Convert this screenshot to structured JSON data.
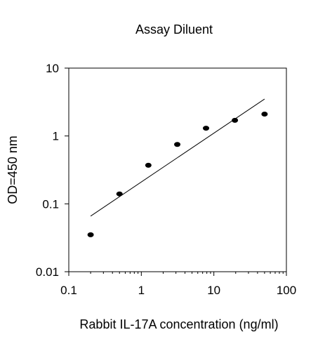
{
  "chart_data": {
    "type": "scatter",
    "title": "Assay Diluent",
    "xlabel": "Rabbit IL-17A concentration (ng/ml)",
    "ylabel": "OD=450 nm",
    "x_scale": "log",
    "y_scale": "log",
    "xlim": [
      0.1,
      100
    ],
    "ylim": [
      0.01,
      10
    ],
    "x_ticks": [
      "0.1",
      "1",
      "10",
      "100"
    ],
    "y_ticks": [
      "0.01",
      "0.1",
      "1",
      "10"
    ],
    "grid": false,
    "points": [
      {
        "x": 0.2,
        "y": 0.035
      },
      {
        "x": 0.5,
        "y": 0.14
      },
      {
        "x": 1.25,
        "y": 0.37
      },
      {
        "x": 3.13,
        "y": 0.75
      },
      {
        "x": 7.8,
        "y": 1.3
      },
      {
        "x": 19.5,
        "y": 1.7
      },
      {
        "x": 50,
        "y": 2.1
      }
    ],
    "fit_line": {
      "x": [
        0.2,
        50
      ],
      "y": [
        0.066,
        3.5
      ]
    },
    "colors": {
      "points": "#000000",
      "line": "#000000",
      "axes": "#000000"
    }
  }
}
